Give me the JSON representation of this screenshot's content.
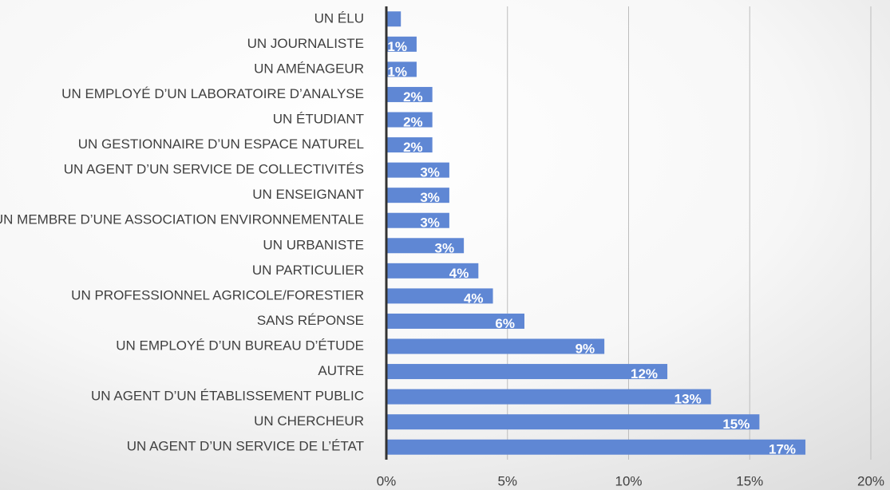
{
  "chart_data": {
    "type": "barh",
    "categories": [
      "UN ÉLU",
      "UN JOURNALISTE",
      "UN AMÉNAGEUR",
      "UN EMPLOYÉ D’UN LABORATOIRE D’ANALYSE",
      "UN ÉTUDIANT",
      "UN GESTIONNAIRE D’UN ESPACE NATUREL",
      "UN AGENT D’UN SERVICE DE COLLECTIVITÉS",
      "UN ENSEIGNANT",
      "UN MEMBRE D’UNE ASSOCIATION ENVIRONNEMENTALE",
      "UN URBANISTE",
      "UN PARTICULIER",
      "UN PROFESSIONNEL AGRICOLE/FORESTIER",
      "SANS RÉPONSE",
      "UN EMPLOYÉ D’UN BUREAU D’ÉTUDE",
      "AUTRE",
      "UN AGENT D’UN ÉTABLISSEMENT PUBLIC",
      "UN CHERCHEUR",
      "UN AGENT D’UN SERVICE DE L’ÉTAT"
    ],
    "values": [
      0.6,
      1.25,
      1.25,
      1.9,
      1.9,
      1.9,
      2.6,
      2.6,
      2.6,
      3.2,
      3.8,
      4.4,
      5.7,
      9.0,
      11.6,
      13.4,
      15.4,
      17.3
    ],
    "value_labels": [
      null,
      "1%",
      "1%",
      "2%",
      "2%",
      "2%",
      "3%",
      "3%",
      "3%",
      "3%",
      "4%",
      "4%",
      "6%",
      "9%",
      "12%",
      "13%",
      "15%",
      "17%"
    ],
    "color": "#5f87d4",
    "xlim": [
      0,
      20
    ],
    "xticks": [
      {
        "value": 0,
        "label": "0%"
      },
      {
        "value": 5,
        "label": "5%"
      },
      {
        "value": 10,
        "label": "10%"
      },
      {
        "value": 15,
        "label": "15%"
      },
      {
        "value": 20,
        "label": "20%"
      }
    ],
    "grid": true
  }
}
